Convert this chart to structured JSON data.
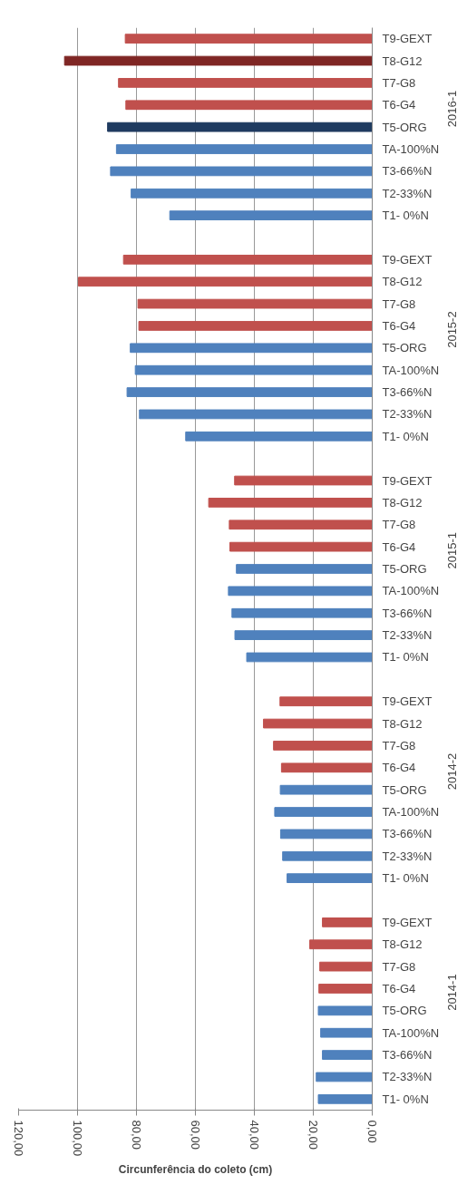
{
  "chart_data": {
    "type": "bar",
    "orientation": "horizontal",
    "categories": [
      "T9-GEXT",
      "T8-G12",
      "T7-G8",
      "T6-G4",
      "T5-ORG",
      "TA-100%N",
      "T3-66%N",
      "T2-33%N",
      "T1- 0%N",
      null,
      "T9-GEXT",
      "T8-G12",
      "T7-G8",
      "T6-G4",
      "T5-ORG",
      "TA-100%N",
      "T3-66%N",
      "T2-33%N",
      "T1- 0%N",
      null,
      "T9-GEXT",
      "T8-G12",
      "T7-G8",
      "T6-G4",
      "T5-ORG",
      "TA-100%N",
      "T3-66%N",
      "T2-33%N",
      "T1- 0%N",
      null,
      "T9-GEXT",
      "T8-G12",
      "T7-G8",
      "T6-G4",
      "T5-ORG",
      "TA-100%N",
      "T3-66%N",
      "T2-33%N",
      "T1- 0%N",
      null,
      "T9-GEXT",
      "T8-G12",
      "T7-G8",
      "T6-G4",
      "T5-ORG",
      "TA-100%N",
      "T3-66%N",
      "T2-33%N",
      "T1- 0%N"
    ],
    "values": [
      83.8,
      104.4,
      86.1,
      83.6,
      89.8,
      86.8,
      88.8,
      81.8,
      68.7,
      null,
      84.4,
      99.7,
      79.5,
      79.2,
      82.1,
      80.4,
      83.2,
      79.0,
      63.3,
      null,
      46.7,
      55.5,
      48.5,
      48.3,
      46.1,
      48.8,
      47.6,
      46.6,
      42.6,
      null,
      31.3,
      36.9,
      33.5,
      30.8,
      31.2,
      33.1,
      31.1,
      30.4,
      28.9,
      null,
      16.9,
      21.2,
      17.8,
      18.1,
      18.3,
      17.5,
      16.9,
      19.0,
      18.3
    ],
    "colors": [
      "#c0504d",
      "#7f2624",
      "#c0504d",
      "#c0504d",
      "#1f3b60",
      "#4f81bd",
      "#4f81bd",
      "#4f81bd",
      "#4f81bd",
      null,
      "#c0504d",
      "#c0504d",
      "#c0504d",
      "#c0504d",
      "#4f81bd",
      "#4f81bd",
      "#4f81bd",
      "#4f81bd",
      "#4f81bd",
      null,
      "#c0504d",
      "#c0504d",
      "#c0504d",
      "#c0504d",
      "#4f81bd",
      "#4f81bd",
      "#4f81bd",
      "#4f81bd",
      "#4f81bd",
      null,
      "#c0504d",
      "#c0504d",
      "#c0504d",
      "#c0504d",
      "#4f81bd",
      "#4f81bd",
      "#4f81bd",
      "#4f81bd",
      "#4f81bd",
      null,
      "#c0504d",
      "#c0504d",
      "#c0504d",
      "#c0504d",
      "#4f81bd",
      "#4f81bd",
      "#4f81bd",
      "#4f81bd",
      "#4f81bd"
    ],
    "xlim": [
      120,
      0
    ],
    "xticks": [
      {
        "value": 120,
        "label": "120,00"
      },
      {
        "value": 100,
        "label": "100,00"
      },
      {
        "value": 80,
        "label": "80,00"
      },
      {
        "value": 60,
        "label": "60,00"
      },
      {
        "value": 40,
        "label": "40,00"
      },
      {
        "value": 20,
        "label": "20,00"
      },
      {
        "value": 0,
        "label": "0,00"
      }
    ],
    "xlabel": "Circunferência do coleto (cm)",
    "annotations": [
      "2016-1",
      "2015-2",
      "2015-1",
      "2014-2",
      "2014-1"
    ],
    "grid": "x"
  }
}
